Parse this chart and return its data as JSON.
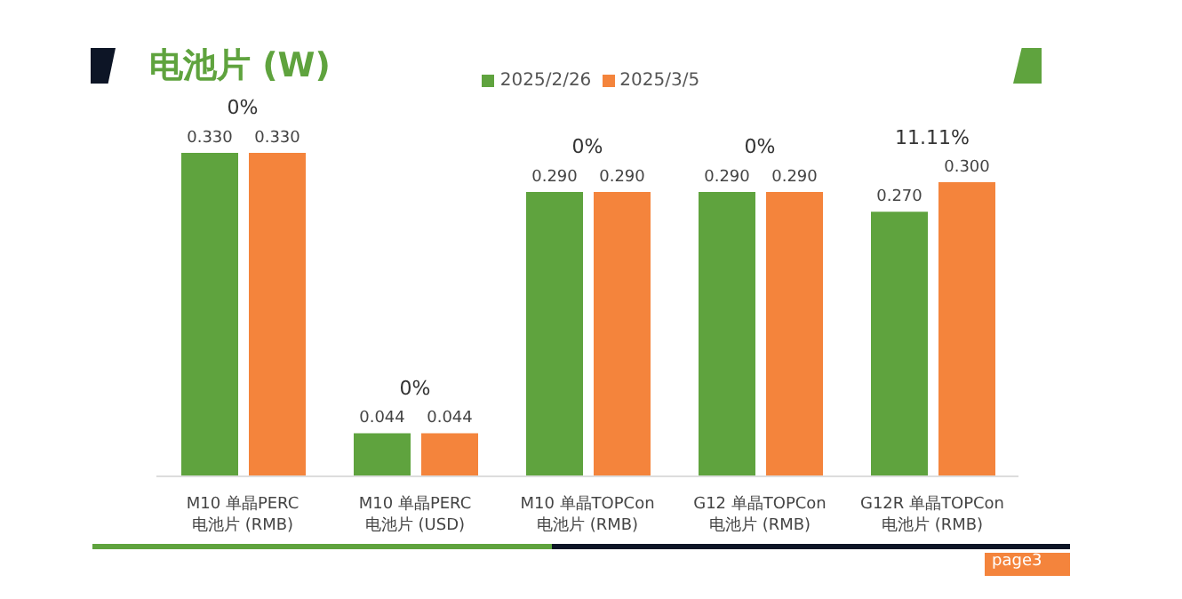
{
  "chart_data": {
    "type": "bar",
    "title": "电池片 (W)",
    "categories": [
      "M10 单晶PERC\n电池片 (RMB)",
      "M10 单晶PERC\n电池片 (USD)",
      "M10 单晶TOPCon\n电池片 (RMB)",
      "G12 单晶TOPCon\n电池片 (RMB)",
      "G12R 单晶TOPCon\n电池片 (RMB)"
    ],
    "series": [
      {
        "name": "2025/2/26",
        "color": "#5fa33e",
        "values": [
          0.33,
          0.044,
          0.29,
          0.29,
          0.27
        ],
        "value_labels": [
          "0.330",
          "0.044",
          "0.290",
          "0.290",
          "0.270"
        ]
      },
      {
        "name": "2025/3/5",
        "color": "#f4843c",
        "values": [
          0.33,
          0.044,
          0.29,
          0.29,
          0.3
        ],
        "value_labels": [
          "0.330",
          "0.044",
          "0.290",
          "0.290",
          "0.300"
        ]
      }
    ],
    "annotations": [
      "0%",
      "0%",
      "0%",
      "0%",
      "11.11%",
      "page3"
    ],
    "legend": "top",
    "grid": false
  }
}
